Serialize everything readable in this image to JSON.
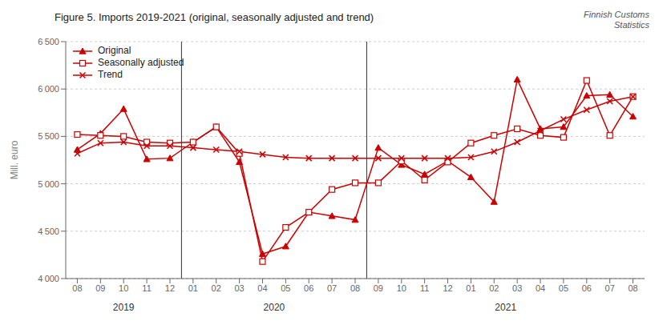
{
  "chart_data": {
    "type": "line",
    "title": "Figure 5. Imports 2019-2021 (original, seasonally adjusted and trend)",
    "watermark": "Finnish Customs\nStatistics",
    "y_label": "Mill. euro",
    "categories": [
      "08",
      "09",
      "10",
      "11",
      "12",
      "01",
      "02",
      "03",
      "04",
      "05",
      "06",
      "07",
      "08",
      "09",
      "10",
      "11",
      "12",
      "01",
      "02",
      "03",
      "04",
      "05",
      "06",
      "07",
      "08"
    ],
    "series": [
      {
        "name": "Original",
        "color": "#cc0000",
        "marker": "triangle",
        "values": [
          5360,
          5530,
          5790,
          5260,
          5270,
          5440,
          5600,
          5230,
          4260,
          4340,
          4700,
          4660,
          4620,
          5380,
          5200,
          5100,
          5240,
          5070,
          4810,
          6100,
          5580,
          5600,
          5930,
          5940,
          5710
        ]
      },
      {
        "name": "Seasonally adjusted",
        "color": "#cc0000",
        "marker": "square",
        "values": [
          5520,
          5510,
          5500,
          5440,
          5430,
          5440,
          5600,
          5320,
          4180,
          4540,
          4700,
          4940,
          5010,
          5010,
          5240,
          5040,
          5230,
          5430,
          5510,
          5580,
          5510,
          5490,
          6090,
          5510,
          5920
        ]
      },
      {
        "name": "Trend",
        "color": "#cc0000",
        "marker": "x",
        "values": [
          5320,
          5430,
          5440,
          5400,
          5400,
          5380,
          5360,
          5340,
          5310,
          5280,
          5270,
          5270,
          5270,
          5270,
          5270,
          5270,
          5270,
          5280,
          5340,
          5440,
          5560,
          5680,
          5780,
          5870,
          5920
        ]
      }
    ],
    "ylim": [
      4000,
      6500
    ],
    "yticks": [
      {
        "value": 4000,
        "label": "4 000"
      },
      {
        "value": 4500,
        "label": "4 500"
      },
      {
        "value": 5000,
        "label": "5 000"
      },
      {
        "value": 5500,
        "label": "5 500"
      },
      {
        "value": 6000,
        "label": "6 000"
      },
      {
        "value": 6500,
        "label": "6 500"
      }
    ],
    "grid": true,
    "legend": "upper left",
    "dividers": [
      4.5,
      12.5
    ],
    "annotations": [
      {
        "text": "2019",
        "x": 2.0
      },
      {
        "text": "2020",
        "x": 8.5
      },
      {
        "text": "2021",
        "x": 18.5
      }
    ]
  }
}
